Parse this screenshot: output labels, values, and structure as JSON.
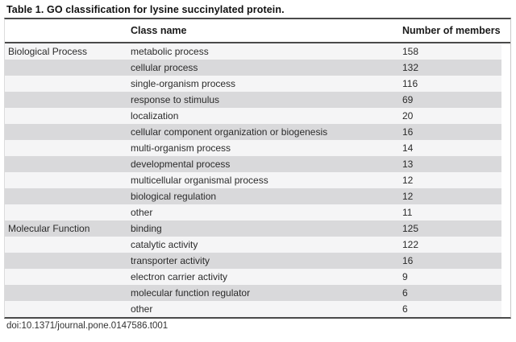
{
  "table": {
    "title": "Table 1. GO classification for lysine succinylated protein.",
    "columns": {
      "category": "",
      "class_name": "Class name",
      "members": "Number of members"
    },
    "rows": [
      {
        "category": "Biological Process",
        "class_name": "metabolic process",
        "members": "158"
      },
      {
        "category": "",
        "class_name": "cellular process",
        "members": "132"
      },
      {
        "category": "",
        "class_name": "single-organism process",
        "members": "116"
      },
      {
        "category": "",
        "class_name": "response to stimulus",
        "members": "69"
      },
      {
        "category": "",
        "class_name": "localization",
        "members": "20"
      },
      {
        "category": "",
        "class_name": "cellular component organization or biogenesis",
        "members": "16"
      },
      {
        "category": "",
        "class_name": "multi-organism process",
        "members": "14"
      },
      {
        "category": "",
        "class_name": "developmental process",
        "members": "13"
      },
      {
        "category": "",
        "class_name": "multicellular organismal process",
        "members": "12"
      },
      {
        "category": "",
        "class_name": "biological regulation",
        "members": "12"
      },
      {
        "category": "",
        "class_name": "other",
        "members": "11"
      },
      {
        "category": "Molecular Function",
        "class_name": "binding",
        "members": "125"
      },
      {
        "category": "",
        "class_name": "catalytic activity",
        "members": "122"
      },
      {
        "category": "",
        "class_name": "transporter activity",
        "members": "16"
      },
      {
        "category": "",
        "class_name": "electron carrier activity",
        "members": "9"
      },
      {
        "category": "",
        "class_name": "molecular function regulator",
        "members": "6"
      },
      {
        "category": "",
        "class_name": "other",
        "members": "6"
      }
    ],
    "footer_doi": "doi:10.1371/journal.pone.0147586.t001"
  },
  "colors": {
    "row_shade": "#d9d9db",
    "row_light": "#f5f5f6",
    "rule": "#4a4a4a",
    "side_border": "#c9c9c9",
    "title_text": "#111111",
    "body_text": "#2b2b2b"
  }
}
